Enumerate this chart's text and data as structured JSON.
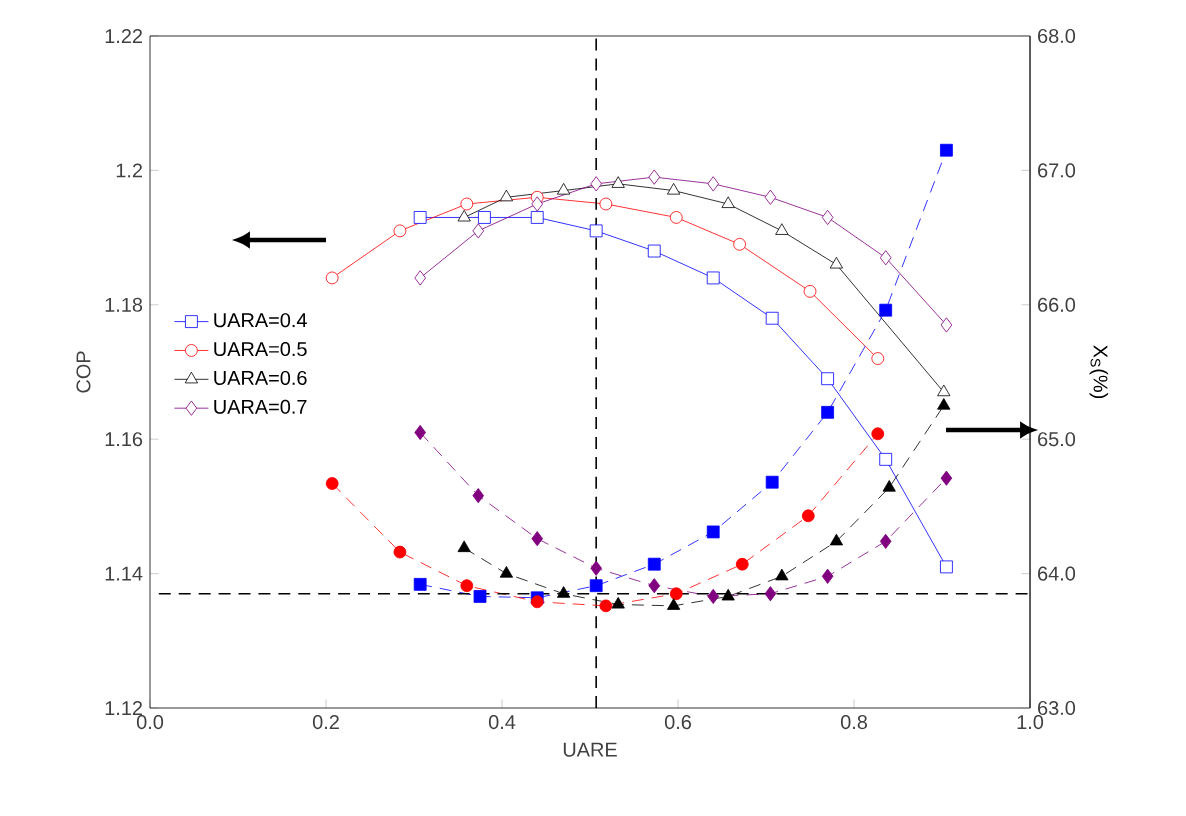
{
  "chart_data": {
    "type": "line",
    "xlabel": "UARE",
    "ylabel": "COP",
    "y2label": "X$_{S}$(%)",
    "xlim": [
      0.0,
      1.0
    ],
    "xticks": [
      {
        "value": 0.0,
        "label": "0.0"
      },
      {
        "value": 0.2,
        "label": "0.2"
      },
      {
        "value": 0.4,
        "label": "0.4"
      },
      {
        "value": 0.6,
        "label": "0.6"
      },
      {
        "value": 0.8,
        "label": "0.8"
      },
      {
        "value": 1.0,
        "label": "1.0"
      }
    ],
    "ylim": [
      1.12,
      1.22
    ],
    "yticks": [
      1.12,
      1.14,
      1.16,
      1.18,
      1.2,
      1.22
    ],
    "y2lim": [
      63.0,
      68.0
    ],
    "y2ticks": [
      {
        "value": 63.0,
        "label": "63.0"
      },
      {
        "value": 64.0,
        "label": "64.0"
      },
      {
        "value": 65.0,
        "label": "65.0"
      },
      {
        "value": 66.0,
        "label": "66.0"
      },
      {
        "value": 67.0,
        "label": "67.0"
      },
      {
        "value": 68.0,
        "label": "68.0"
      }
    ],
    "legend": "left",
    "series": [
      {
        "name": "UARA=0.4",
        "color": "#0000ff",
        "marker": "square",
        "line_style": "solid",
        "x": [
          0.307,
          0.38,
          0.44,
          0.507,
          0.573,
          0.64,
          0.707,
          0.77,
          0.836,
          0.905
        ],
        "values": [
          1.193,
          1.193,
          1.193,
          1.191,
          1.188,
          1.184,
          1.178,
          1.169,
          1.157,
          1.141
        ]
      },
      {
        "name": "UARA=0.5",
        "color": "#ff0000",
        "marker": "circle",
        "line_style": "solid",
        "x": [
          0.207,
          0.284,
          0.36,
          0.44,
          0.518,
          0.598,
          0.67,
          0.75,
          0.827
        ],
        "values": [
          1.184,
          1.191,
          1.195,
          1.196,
          1.195,
          1.193,
          1.189,
          1.182,
          1.172
        ]
      },
      {
        "name": "UARA=0.6",
        "color": "#000000",
        "marker": "triangle",
        "line_style": "solid",
        "x": [
          0.357,
          0.405,
          0.47,
          0.532,
          0.595,
          0.657,
          0.718,
          0.78,
          0.84,
          0.902
        ],
        "values": [
          1.193,
          1.196,
          1.197,
          1.198,
          1.197,
          1.195,
          1.191,
          1.186,
          null,
          1.167
        ]
      },
      {
        "name": "UARA=0.7",
        "color": "#800080",
        "marker": "diamond",
        "line_style": "solid",
        "x": [
          0.307,
          0.373,
          0.44,
          0.507,
          0.573,
          0.64,
          0.705,
          0.77,
          0.836,
          0.905
        ],
        "values": [
          1.184,
          1.191,
          1.195,
          1.198,
          1.199,
          1.198,
          1.196,
          1.193,
          1.187,
          1.177
        ]
      },
      {
        "color": "#0000ff",
        "marker": "square",
        "line_style": "dashed",
        "axis": "y2",
        "x": [
          0.307,
          0.375,
          0.44,
          0.507,
          0.573,
          0.64,
          0.707,
          0.77,
          0.836,
          0.905
        ],
        "values": [
          63.92,
          63.83,
          63.82,
          63.91,
          64.07,
          64.31,
          64.68,
          65.2,
          65.96,
          67.15
        ]
      },
      {
        "color": "#ff0000",
        "marker": "circle",
        "line_style": "dashed",
        "axis": "y2",
        "x": [
          0.207,
          0.284,
          0.36,
          0.44,
          0.518,
          0.598,
          0.673,
          0.748,
          0.827
        ],
        "values": [
          64.67,
          64.16,
          63.91,
          63.79,
          63.76,
          63.85,
          64.07,
          64.43,
          65.04
        ]
      },
      {
        "color": "#000000",
        "marker": "triangle",
        "line_style": "dashed",
        "axis": "y2",
        "x": [
          0.357,
          0.405,
          0.47,
          0.532,
          0.595,
          0.657,
          0.718,
          0.78,
          0.84,
          0.902
        ],
        "values": [
          64.19,
          64.0,
          63.85,
          63.77,
          63.76,
          63.83,
          63.98,
          64.24,
          64.64,
          65.25
        ]
      },
      {
        "color": "#800080",
        "marker": "diamond",
        "line_style": "dashed",
        "axis": "y2",
        "x": [
          0.307,
          0.373,
          0.44,
          0.507,
          0.573,
          0.64,
          0.705,
          0.77,
          0.836,
          0.905
        ],
        "values": [
          65.05,
          64.58,
          64.26,
          64.04,
          63.91,
          63.83,
          63.85,
          63.98,
          64.24,
          64.71
        ]
      }
    ],
    "ref_lines": [
      {
        "axis": "x",
        "value": 0.507,
        "color": "#000000",
        "line_style": "dashed"
      },
      {
        "axis": "y2",
        "value": 63.85,
        "color": "#000000",
        "line_style": "dashed"
      }
    ]
  }
}
